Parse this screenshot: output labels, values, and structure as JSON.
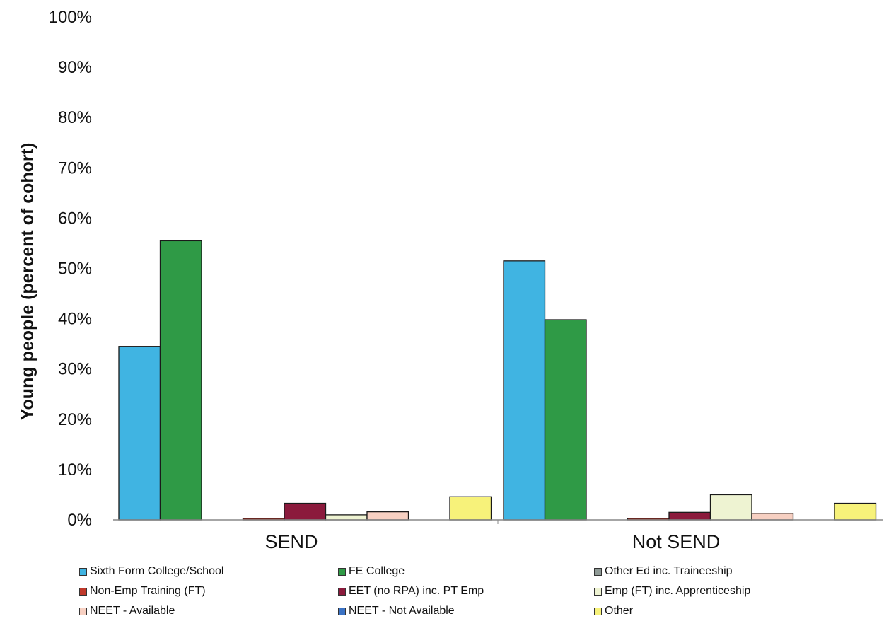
{
  "chart_data": {
    "type": "bar",
    "title": "",
    "xlabel": "",
    "ylabel": "Young people (percent of cohort)",
    "ylim": [
      0,
      100
    ],
    "yticks": [
      "0%",
      "10%",
      "20%",
      "30%",
      "40%",
      "50%",
      "60%",
      "70%",
      "80%",
      "90%",
      "100%"
    ],
    "categories": [
      "SEND",
      "Not SEND"
    ],
    "legend_position": "bottom",
    "series": [
      {
        "name": "Sixth Form College/School",
        "values": [
          34.5,
          51.5
        ],
        "color": "#40b4e2"
      },
      {
        "name": "FE College",
        "values": [
          55.5,
          39.8
        ],
        "color": "#2f9a46"
      },
      {
        "name": "Other Ed inc. Traineeship",
        "values": [
          0,
          0
        ],
        "color": "#8f9a96"
      },
      {
        "name": "Non-Emp Training (FT)",
        "values": [
          0.3,
          0.3
        ],
        "color": "#c0392b"
      },
      {
        "name": "EET (no RPA) inc. PT Emp",
        "values": [
          3.3,
          1.5
        ],
        "color": "#8b1a3c"
      },
      {
        "name": "Emp (FT) inc. Apprenticeship",
        "values": [
          1.0,
          5.0
        ],
        "color": "#eef3d2"
      },
      {
        "name": "NEET - Available",
        "values": [
          1.6,
          1.3
        ],
        "color": "#f7d0c2"
      },
      {
        "name": "NEET - Not Available",
        "values": [
          0,
          0
        ],
        "color": "#3a72c4"
      },
      {
        "name": "Other",
        "values": [
          4.6,
          3.3
        ],
        "color": "#f7f27a"
      }
    ]
  }
}
